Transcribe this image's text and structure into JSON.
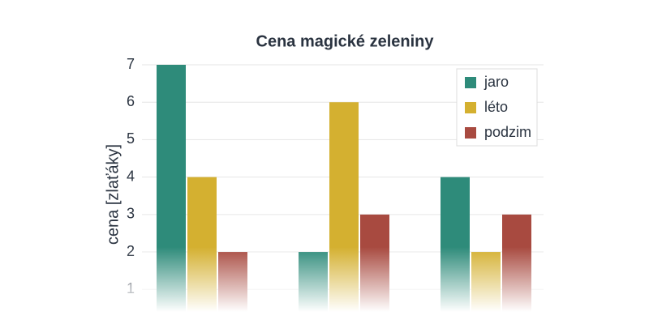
{
  "chart_data": {
    "type": "bar",
    "title": "Cena magické zeleniny",
    "y_label": "cena [zlaťáky]",
    "categories": [
      null,
      null,
      null
    ],
    "series": [
      {
        "name": "jaro",
        "color": "#2e8b7a",
        "values": [
          7,
          2,
          4
        ]
      },
      {
        "name": "léto",
        "color": "#d4b030",
        "values": [
          4,
          6,
          2
        ]
      },
      {
        "name": "podzim",
        "color": "#a84a40",
        "values": [
          2,
          3,
          3
        ]
      }
    ],
    "ylim": [
      0.4,
      7
    ],
    "yticks": [
      1,
      2,
      3,
      4,
      5,
      6,
      7
    ],
    "grid": true,
    "legend": "top-right"
  }
}
